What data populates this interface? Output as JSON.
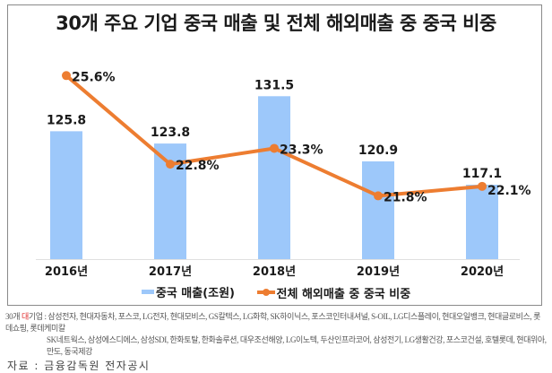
{
  "chart_data": {
    "type": "bar+line",
    "title": "30개 주요 기업 중국 매출 및 전체 해외매출 중 중국 비중",
    "categories": [
      "2016년",
      "2017년",
      "2018년",
      "2019년",
      "2020년"
    ],
    "series": [
      {
        "name": "중국 매출(조원)",
        "type": "bar",
        "values": [
          125.8,
          123.8,
          131.5,
          120.9,
          117.1
        ],
        "labels": [
          "125.8",
          "123.8",
          "131.5",
          "120.9",
          "117.1"
        ],
        "color": "#9DC8FA",
        "axis": "left",
        "ylim": [
          105,
          140
        ]
      },
      {
        "name": "전체 해외매출 중 중국 비중",
        "type": "line",
        "values": [
          25.6,
          22.8,
          23.3,
          21.8,
          22.1
        ],
        "labels": [
          "25.6%",
          "22.8%",
          "23.3%",
          "21.8%",
          "22.1%"
        ],
        "color": "#ED7D31",
        "axis": "right",
        "ylim": [
          19.8,
          26.6
        ]
      }
    ],
    "xlabel": "",
    "ylabel": "",
    "grid": false,
    "legend_position": "bottom"
  },
  "footnote": {
    "prefix": "30개 ",
    "highlight": "대",
    "label": "기업 : ",
    "line1": "삼성전자, 현대자동차, 포스코, LG전자, 현대모비스, GS칼텍스, LG화학, SK하이닉스, 포스코인터내셔널, S-OIL, LG디스플레이, 현대오일뱅크, 현대글로비스, 롯데쇼핑, 롯데케미칼",
    "line2": "SK네트웍스, 삼성에스디에스, 삼성SDI, 한화토탈, 한화솔루션, 대우조선해양, LG이노텍, 두산인프라코어, 삼성전기, LG생활건강, 포스코건설, 호텔롯데, 현대위아, 만도, 동국제강"
  },
  "source": "자료 : 금융감독원 전자공시"
}
